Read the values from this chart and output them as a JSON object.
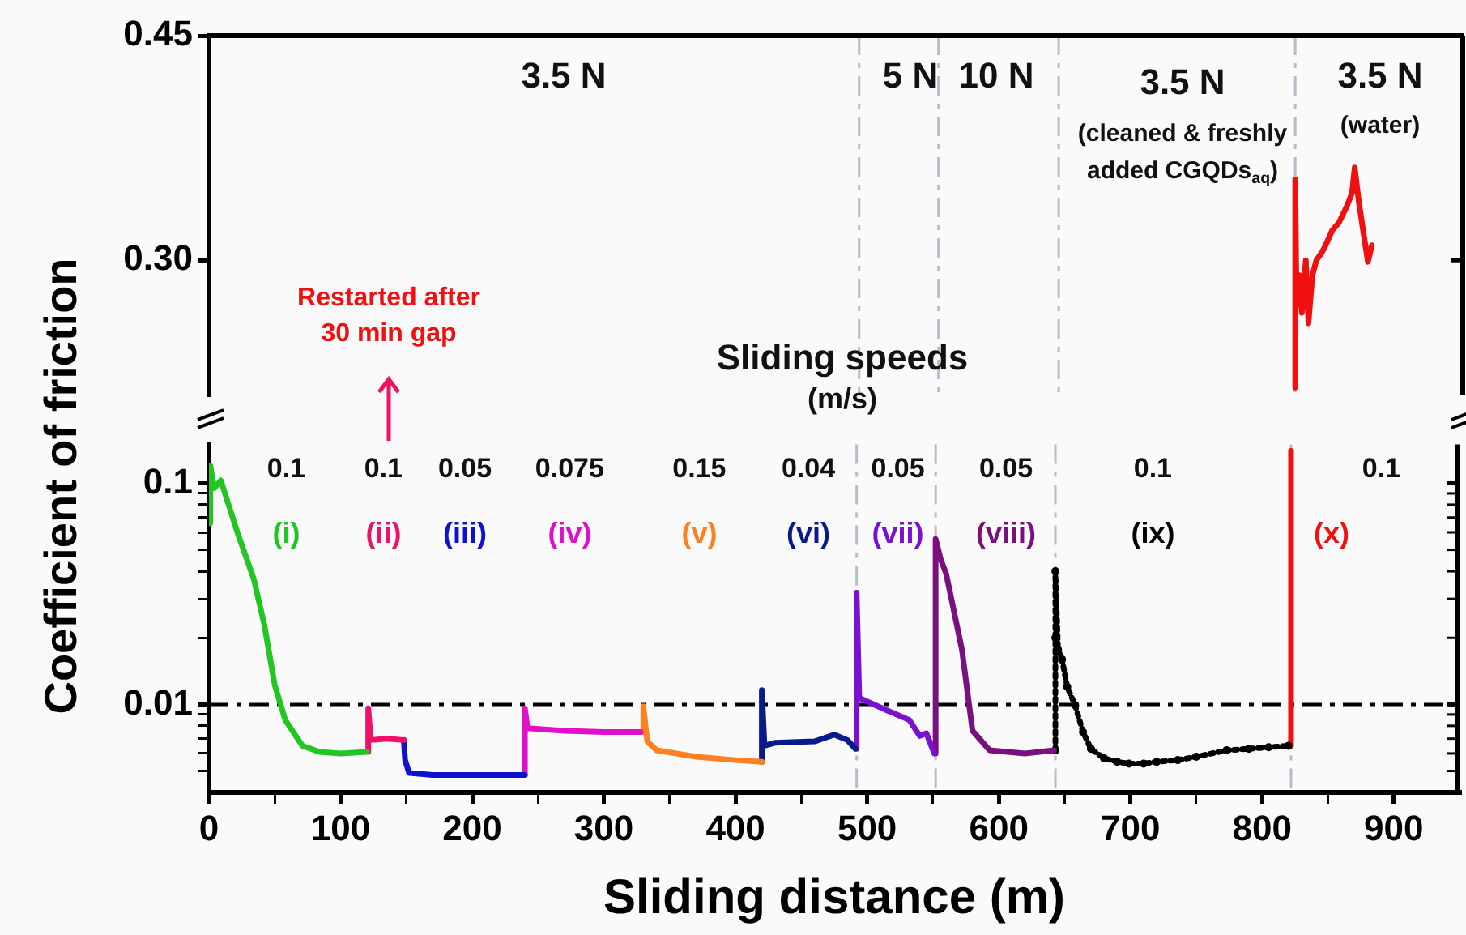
{
  "chart_data": [
    {
      "type": "line",
      "xlim": [
        0,
        950
      ],
      "ylim": [
        0.21,
        0.45
      ],
      "yticks": [
        {
          "value": 0.3,
          "label": "0.30"
        },
        0.45
      ],
      "tick_labels": "y",
      "grid": false,
      "legend": false,
      "series": [
        {
          "color": "#f01010",
          "x": [
            822,
            822,
            823,
            825,
            827,
            830,
            832,
            835,
            838,
            842,
            845,
            850,
            855,
            861,
            865,
            867,
            870,
            873,
            877,
            880
          ],
          "values": [
            0.215,
            0.354,
            0.27,
            0.29,
            0.265,
            0.3,
            0.258,
            0.29,
            0.3,
            0.305,
            0.31,
            0.32,
            0.325,
            0.336,
            0.345,
            0.362,
            0.34,
            0.322,
            0.299,
            0.31
          ]
        }
      ],
      "ref_lines": [
        {
          "axis": "x",
          "value": 492,
          "color": "#b8bcc8",
          "line_style": "dashed"
        },
        {
          "axis": "x",
          "value": 552,
          "color": "#b8bcc8",
          "line_style": "dashed"
        },
        {
          "axis": "x",
          "value": 643,
          "color": "#b8bcc8",
          "line_style": "dashed"
        },
        {
          "axis": "x",
          "value": 822,
          "color": "#b8bcc8",
          "line_style": "dashed"
        }
      ],
      "annotations": [
        "3.5 N",
        "5 N",
        "10 N",
        "3.5 N",
        "(cleaned & freshly",
        "added CGQDs$_{aq}$)",
        "3.5 N",
        "(water)",
        "Restarted after",
        "30 min gap",
        "Sliding speeds",
        "(m/s)"
      ]
    },
    {
      "type": "line",
      "log": "y",
      "xlabel": "Sliding distance (m)",
      "ylabel": "Coefficient of friction",
      "xlim": [
        0,
        950
      ],
      "ylim": [
        0.004,
        0.15
      ],
      "xticks": [
        0,
        {
          "value": 50,
          "label": null
        },
        100,
        {
          "value": 150,
          "label": null
        },
        200,
        {
          "value": 250,
          "label": null
        },
        300,
        {
          "value": 350,
          "label": null
        },
        400,
        {
          "value": 450,
          "label": null
        },
        500,
        {
          "value": 550,
          "label": null
        },
        600,
        {
          "value": 650,
          "label": null
        },
        700,
        {
          "value": 750,
          "label": null
        },
        800,
        {
          "value": 850,
          "label": null
        },
        900
      ],
      "yticks": [
        {
          "value": 0.005,
          "label": null
        },
        {
          "value": 0.006,
          "label": null
        },
        {
          "value": 0.007,
          "label": null
        },
        {
          "value": 0.008,
          "label": null
        },
        {
          "value": 0.009,
          "label": null
        },
        0.01,
        {
          "value": 0.02,
          "label": null
        },
        {
          "value": 0.03,
          "label": null
        },
        {
          "value": 0.04,
          "label": null
        },
        {
          "value": 0.05,
          "label": null
        },
        {
          "value": 0.06,
          "label": null
        },
        {
          "value": 0.07,
          "label": null
        },
        {
          "value": 0.08,
          "label": null
        },
        {
          "value": 0.09,
          "label": null
        },
        0.1
      ],
      "grid": false,
      "legend": false,
      "series": [
        {
          "name": "(i)",
          "color": "#22c522",
          "x": [
            0,
            1,
            4,
            9,
            22,
            34,
            42,
            50,
            58,
            71,
            84,
            100,
            120
          ],
          "values": [
            0.066,
            0.12,
            0.095,
            0.103,
            0.059,
            0.037,
            0.023,
            0.0122,
            0.0085,
            0.0065,
            0.0061,
            0.006,
            0.0061
          ]
        },
        {
          "name": "(ii)",
          "color": "#ee1166",
          "x": [
            121,
            121,
            123,
            135,
            148
          ],
          "values": [
            0.0061,
            0.0096,
            0.0069,
            0.007,
            0.0069
          ]
        },
        {
          "name": "(iii)",
          "color": "#1010d0",
          "x": [
            148,
            149,
            152,
            170,
            200,
            240
          ],
          "values": [
            0.0069,
            0.0056,
            0.0049,
            0.0048,
            0.0048,
            0.0048
          ]
        },
        {
          "name": "(iv)",
          "color": "#e010c8",
          "x": [
            240,
            240,
            242,
            270,
            300,
            328
          ],
          "values": [
            0.0048,
            0.0096,
            0.0078,
            0.0076,
            0.0075,
            0.0075
          ]
        },
        {
          "name": "(v)",
          "color": "#ff8020",
          "x": [
            330,
            330,
            333,
            340,
            370,
            400,
            420
          ],
          "values": [
            0.0075,
            0.0098,
            0.0068,
            0.0062,
            0.0058,
            0.0056,
            0.0055
          ]
        },
        {
          "name": "(vi)",
          "color": "#0a1a8a",
          "x": [
            420,
            420,
            422,
            430,
            460,
            475,
            485,
            491
          ],
          "values": [
            0.0055,
            0.0116,
            0.0065,
            0.0067,
            0.0068,
            0.0073,
            0.0069,
            0.0063
          ]
        },
        {
          "name": "(vii)",
          "color": "#7a10d0",
          "x": [
            492,
            492,
            494,
            515,
            532,
            540,
            545,
            551
          ],
          "values": [
            0.0063,
            0.032,
            0.0107,
            0.0094,
            0.0085,
            0.0072,
            0.0074,
            0.006
          ]
        },
        {
          "name": "(viii)",
          "color": "#7a1080",
          "x": [
            552,
            552,
            556,
            560,
            572,
            580,
            593,
            620,
            642
          ],
          "values": [
            0.006,
            0.056,
            0.045,
            0.039,
            0.0177,
            0.0076,
            0.0062,
            0.006,
            0.0062
          ]
        },
        {
          "name": "(ix)",
          "color": "#000000",
          "marker": "circle",
          "line_style": "dotted",
          "x": [
            643,
            643,
            643,
            645,
            648,
            652,
            658,
            664,
            670,
            680,
            690,
            699,
            710,
            720,
            736,
            750,
            773,
            790,
            805,
            820
          ],
          "values": [
            0.0062,
            0.02,
            0.04,
            0.0177,
            0.016,
            0.012,
            0.0099,
            0.0075,
            0.0063,
            0.0057,
            0.0055,
            0.0054,
            0.0054,
            0.0055,
            0.0056,
            0.0058,
            0.0062,
            0.0063,
            0.0064,
            0.0065
          ]
        },
        {
          "name": "(x)",
          "color": "#f01010",
          "x": [
            822,
            822
          ],
          "values": [
            0.0065,
            0.14
          ]
        }
      ],
      "ref_lines": [
        {
          "axis": "y",
          "value": 0.01,
          "color": "#000000",
          "line_style": "dashed"
        },
        {
          "axis": "x",
          "value": 492,
          "color": "#b8bcc8",
          "line_style": "dashed"
        },
        {
          "axis": "x",
          "value": 552,
          "color": "#b8bcc8",
          "line_style": "dashed"
        },
        {
          "axis": "x",
          "value": 643,
          "color": "#b8bcc8",
          "line_style": "dashed"
        },
        {
          "axis": "x",
          "value": 822,
          "color": "#b8bcc8",
          "line_style": "dashed"
        }
      ],
      "annotations": [
        "0.1",
        "0.1",
        "0.05",
        "0.075",
        "0.15",
        "0.04",
        "0.05",
        "0.05",
        "0.1",
        "0.1"
      ]
    }
  ]
}
